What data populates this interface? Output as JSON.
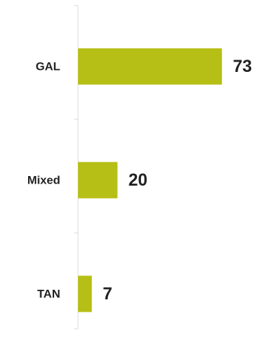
{
  "chart_data": {
    "type": "bar",
    "orientation": "horizontal",
    "categories": [
      "GAL",
      "Mixed",
      "TAN"
    ],
    "values": [
      73,
      20,
      7
    ],
    "title": "",
    "xlabel": "",
    "ylabel": "",
    "xlim": [
      0,
      100
    ],
    "grid": false,
    "legend": "none",
    "bar_color": "#b6bf15",
    "axis_color": "#d9d9d9",
    "text_color": "#222222"
  }
}
